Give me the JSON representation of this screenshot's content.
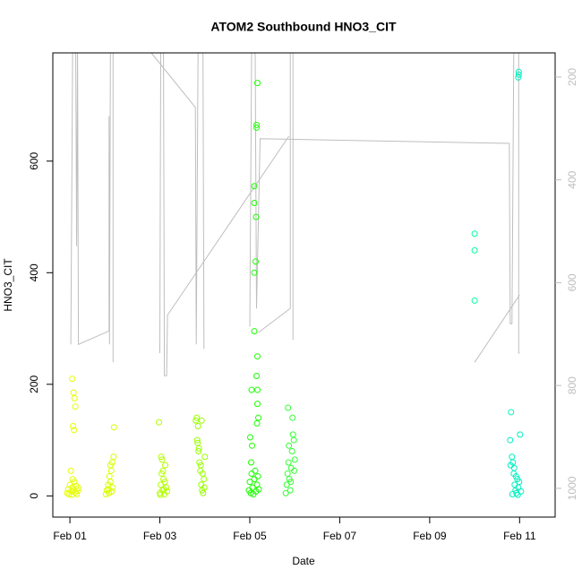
{
  "chart_data": {
    "type": "scatter",
    "title": "ATOM2 Southbound HNO3_CIT",
    "x_label": "Date",
    "y_label": "HNO3_CIT",
    "xlim": [
      -0.38,
      10.79
    ],
    "ylim": [
      -38,
      794
    ],
    "y2lim": [
      1056,
      153
    ],
    "xticks": [
      {
        "value": 0,
        "label": "Feb 01"
      },
      {
        "value": 2,
        "label": "Feb 03"
      },
      {
        "value": 4,
        "label": "Feb 05"
      },
      {
        "value": 6,
        "label": "Feb 07"
      },
      {
        "value": 8,
        "label": "Feb 09"
      },
      {
        "value": 10,
        "label": "Feb 11"
      }
    ],
    "yticks": [
      0,
      200,
      400,
      600
    ],
    "y2ticks": [
      200,
      400,
      600,
      800,
      1000
    ],
    "y2_color": "#bebebe",
    "series": [
      {
        "color": "#bebebe",
        "axis": "y2",
        "x": [
          0.02,
          0.06,
          0.13,
          0.15,
          0.17,
          0.19,
          0.87,
          0.87,
          0.88,
          0.9,
          0.96,
          0.96,
          null,
          1.81,
          2.79,
          2.81,
          2.85,
          2.96,
          2.98,
          null,
          2.0,
          2.02,
          2.08,
          2.1,
          2.15,
          2.17,
          4.87,
          null,
          4.0,
          4.04,
          4.12,
          4.15,
          4.23,
          9.77,
          9.79,
          9.83,
          9.87,
          9.98,
          9.98,
          10.0,
          null,
          4.19,
          4.9,
          4.9,
          4.96,
          4.96,
          null,
          9.0,
          10.0
        ],
        "values": [
          720,
          153,
          153,
          529,
          153,
          720,
          694,
          276,
          720,
          153,
          153,
          755,
          null,
          153,
          259,
          720,
          153,
          153,
          729,
          null,
          737,
          153,
          153,
          781,
          781,
          663,
          315,
          null,
          685,
          153,
          153,
          650,
          320,
          329,
          680,
          680,
          153,
          153,
          737,
          737,
          null,
          697,
          650,
          153,
          153,
          711,
          null,
          755,
          624
        ]
      },
      {
        "color": "#e5ff00",
        "x": [
          -0.06,
          -0.04,
          -0.02,
          0,
          0.02,
          0.03,
          0.04,
          0.05,
          0.06,
          0.08,
          0.1,
          0.12,
          0.14,
          0.15,
          0.17,
          0.19,
          0.05,
          0.08,
          0.1,
          0.12,
          0.07,
          0.09
        ],
        "values": [
          5,
          12,
          3,
          20,
          45,
          8,
          2,
          15,
          30,
          10,
          25,
          6,
          18,
          3,
          9,
          14,
          210,
          185,
          175,
          160,
          125,
          118
        ]
      },
      {
        "color": "#d9ff00",
        "x": [
          0.8,
          0.82,
          0.85,
          0.87,
          0.88,
          0.9,
          0.92,
          0.93,
          0.95,
          0.97,
          0.86,
          0.9,
          0.94,
          0.98
        ],
        "values": [
          3,
          10,
          20,
          5,
          35,
          55,
          45,
          8,
          15,
          70,
          12,
          25,
          60,
          123
        ]
      },
      {
        "color": "#b3ff00",
        "x": [
          1.98,
          2.0,
          2.02,
          2.04,
          2.05,
          2.06,
          2.08,
          2.1,
          2.12,
          2.14,
          2.16,
          2.03,
          2.07,
          2.11,
          2.01,
          2.09
        ],
        "values": [
          132,
          5,
          20,
          40,
          65,
          10,
          30,
          3,
          55,
          15,
          8,
          70,
          45,
          25,
          2,
          12
        ]
      },
      {
        "color": "#99ff00",
        "x": [
          2.8,
          2.82,
          2.84,
          2.86,
          2.88,
          2.9,
          2.92,
          2.94,
          2.96,
          2.98,
          3.0,
          2.83,
          2.87,
          2.91,
          2.95,
          2.99,
          2.85,
          2.93
        ],
        "values": [
          135,
          140,
          95,
          80,
          60,
          45,
          20,
          10,
          5,
          30,
          70,
          100,
          85,
          55,
          40,
          15,
          125,
          135
        ]
      },
      {
        "color": "#1aff00",
        "x": [
          3.98,
          4.0,
          4.02,
          4.04,
          4.06,
          4.08,
          4.1,
          4.12,
          4.14,
          4.16,
          4.18,
          4.2,
          4.03,
          4.05,
          4.01,
          4.04,
          4.1,
          4.1,
          4.14,
          4.13,
          4.1,
          4.1,
          4.17,
          4.15,
          4.17,
          4.17,
          4.19,
          4.16,
          4.15,
          4.15,
          4.17
        ],
        "values": [
          10,
          25,
          5,
          40,
          15,
          3,
          30,
          45,
          8,
          20,
          35,
          12,
          60,
          90,
          105,
          190,
          555,
          525,
          500,
          420,
          400,
          295,
          250,
          215,
          190,
          165,
          140,
          130,
          665,
          660,
          740
        ]
      },
      {
        "color": "#33ff33",
        "x": [
          4.8,
          4.82,
          4.84,
          4.86,
          4.88,
          4.9,
          4.92,
          4.94,
          4.96,
          4.98,
          5.0,
          4.85,
          4.95,
          4.87,
          4.91,
          4.99
        ],
        "values": [
          5,
          20,
          40,
          60,
          30,
          10,
          50,
          80,
          110,
          100,
          65,
          158,
          140,
          90,
          25,
          45
        ]
      },
      {
        "color": "#00ffa0",
        "x": [
          9.0,
          9.0,
          9.0
        ],
        "values": [
          470,
          440,
          350
        ]
      },
      {
        "color": "#00f0c0",
        "x": [
          9.79,
          9.81,
          9.83,
          9.85,
          9.87,
          9.89,
          9.91,
          9.93,
          9.95,
          9.97,
          9.99,
          10.01,
          10.03,
          9.8,
          9.84,
          9.88,
          9.92,
          9.96,
          9.98,
          9.98,
          9.97
        ],
        "values": [
          100,
          150,
          70,
          60,
          40,
          20,
          10,
          5,
          30,
          15,
          25,
          110,
          8,
          55,
          3,
          50,
          35,
          2,
          760,
          755,
          750
        ]
      }
    ]
  }
}
